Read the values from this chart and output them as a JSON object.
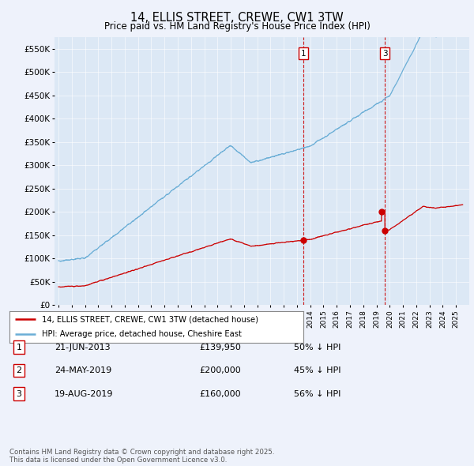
{
  "title": "14, ELLIS STREET, CREWE, CW1 3TW",
  "subtitle": "Price paid vs. HM Land Registry's House Price Index (HPI)",
  "background_color": "#eef2fb",
  "plot_bg_color": "#dce8f5",
  "hpi_color": "#6baed6",
  "price_color": "#cc0000",
  "vline_color": "#cc0000",
  "ylim": [
    0,
    575000
  ],
  "yticks": [
    0,
    50000,
    100000,
    150000,
    200000,
    250000,
    300000,
    350000,
    400000,
    450000,
    500000,
    550000
  ],
  "ytick_labels": [
    "£0",
    "£50K",
    "£100K",
    "£150K",
    "£200K",
    "£250K",
    "£300K",
    "£350K",
    "£400K",
    "£450K",
    "£500K",
    "£550K"
  ],
  "sale_year_nums": [
    2013.47,
    2019.38,
    2019.63
  ],
  "sale_prices": [
    139950,
    200000,
    160000
  ],
  "sale_labels": [
    "1",
    "2",
    "3"
  ],
  "legend_line1": "14, ELLIS STREET, CREWE, CW1 3TW (detached house)",
  "legend_line2": "HPI: Average price, detached house, Cheshire East",
  "table_entries": [
    {
      "num": "1",
      "date": "21-JUN-2013",
      "price": "£139,950",
      "pct": "50% ↓ HPI"
    },
    {
      "num": "2",
      "date": "24-MAY-2019",
      "price": "£200,000",
      "pct": "45% ↓ HPI"
    },
    {
      "num": "3",
      "date": "19-AUG-2019",
      "price": "£160,000",
      "pct": "56% ↓ HPI"
    }
  ],
  "footer": "Contains HM Land Registry data © Crown copyright and database right 2025.\nThis data is licensed under the Open Government Licence v3.0."
}
